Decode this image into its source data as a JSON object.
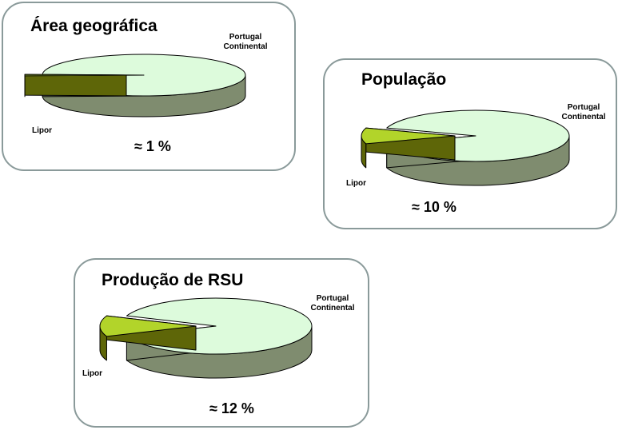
{
  "colors": {
    "portugal_top": "#ddfbdc",
    "portugal_side": "#7f8c6f",
    "lipor_top": "#b2d42a",
    "lipor_side": "#5e6608",
    "outline": "#000000",
    "panel_border": "#8a9a9a"
  },
  "chart_data": [
    {
      "type": "pie",
      "title": "Área geográfica",
      "annotation": "≈ 1 %",
      "slices": [
        {
          "label": "Portugal Continental",
          "value": 99
        },
        {
          "label": "Lipor",
          "value": 1
        }
      ]
    },
    {
      "type": "pie",
      "title": "População",
      "annotation": "≈ 10 %",
      "slices": [
        {
          "label": "Portugal Continental",
          "value": 90
        },
        {
          "label": "Lipor",
          "value": 10
        }
      ]
    },
    {
      "type": "pie",
      "title": "Produção de RSU",
      "annotation": "≈ 12 %",
      "slices": [
        {
          "label": "Portugal Continental",
          "value": 88
        },
        {
          "label": "Lipor",
          "value": 12
        }
      ]
    }
  ]
}
